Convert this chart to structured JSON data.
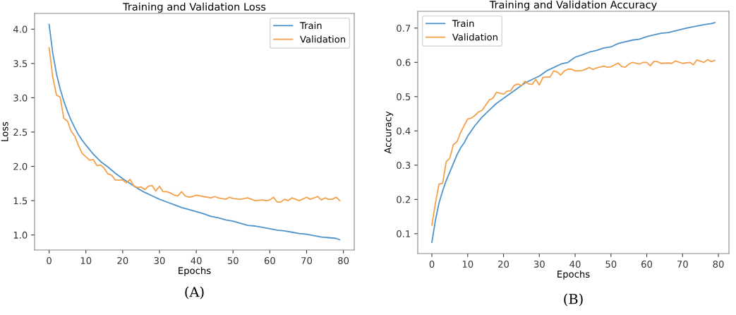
{
  "chart_data": [
    {
      "type": "line",
      "title": "Training and Validation Loss",
      "xlabel": "Epochs",
      "ylabel": "Loss",
      "xlim": [
        -3.95,
        82.95
      ],
      "ylim": [
        0.78,
        4.23
      ],
      "xticks": [
        0,
        10,
        20,
        30,
        40,
        50,
        60,
        70,
        80
      ],
      "yticks": [
        {
          "value": 1.0,
          "label": "1.0"
        },
        1.5,
        {
          "value": 2.0,
          "label": "2.0"
        },
        2.5,
        {
          "value": 3.0,
          "label": "3.0"
        },
        3.5,
        {
          "value": 4.0,
          "label": "4.0"
        }
      ],
      "grid": false,
      "legend": "top right",
      "annotations": [
        "(A)"
      ],
      "series": [
        {
          "name": "Train",
          "color": "#4f94cd",
          "x": [
            0,
            1,
            2,
            3,
            4,
            5,
            6,
            7,
            8,
            9,
            10,
            12,
            14,
            16,
            18,
            20,
            22,
            24,
            26,
            28,
            30,
            32,
            34,
            36,
            38,
            40,
            42,
            44,
            46,
            48,
            50,
            52,
            54,
            56,
            58,
            60,
            62,
            64,
            66,
            68,
            70,
            72,
            74,
            76,
            78,
            79
          ],
          "values": [
            4.07,
            3.65,
            3.35,
            3.13,
            2.95,
            2.8,
            2.67,
            2.56,
            2.46,
            2.38,
            2.31,
            2.18,
            2.07,
            1.99,
            1.9,
            1.82,
            1.75,
            1.68,
            1.62,
            1.57,
            1.52,
            1.48,
            1.44,
            1.4,
            1.37,
            1.34,
            1.31,
            1.27,
            1.25,
            1.22,
            1.2,
            1.17,
            1.14,
            1.13,
            1.11,
            1.09,
            1.07,
            1.06,
            1.04,
            1.02,
            1.01,
            0.99,
            0.97,
            0.96,
            0.95,
            0.93
          ]
        },
        {
          "name": "Validation",
          "color": "#f5a04a",
          "x": [
            0,
            1,
            2,
            3,
            4,
            5,
            6,
            7,
            8,
            9,
            10,
            11,
            12,
            13,
            14,
            15,
            16,
            17,
            18,
            19,
            20,
            21,
            22,
            23,
            24,
            25,
            26,
            27,
            28,
            29,
            30,
            31,
            32,
            33,
            34,
            35,
            36,
            37,
            38,
            39,
            40,
            42,
            44,
            45,
            46,
            48,
            49,
            50,
            52,
            54,
            56,
            58,
            59,
            60,
            61,
            62,
            63,
            64,
            65,
            66,
            67,
            68,
            70,
            71,
            73,
            74,
            75,
            76,
            77,
            78,
            79
          ],
          "values": [
            3.73,
            3.3,
            3.04,
            3.01,
            2.7,
            2.66,
            2.51,
            2.44,
            2.3,
            2.19,
            2.14,
            2.09,
            2.1,
            2.01,
            2.02,
            1.97,
            1.89,
            1.87,
            1.8,
            1.8,
            1.8,
            1.76,
            1.81,
            1.72,
            1.69,
            1.7,
            1.66,
            1.71,
            1.72,
            1.64,
            1.71,
            1.63,
            1.63,
            1.61,
            1.58,
            1.57,
            1.63,
            1.57,
            1.55,
            1.56,
            1.58,
            1.56,
            1.54,
            1.56,
            1.54,
            1.52,
            1.55,
            1.53,
            1.52,
            1.54,
            1.5,
            1.51,
            1.5,
            1.51,
            1.55,
            1.48,
            1.48,
            1.52,
            1.5,
            1.54,
            1.52,
            1.5,
            1.55,
            1.52,
            1.56,
            1.51,
            1.54,
            1.52,
            1.52,
            1.55,
            1.5
          ]
        }
      ]
    },
    {
      "type": "line",
      "title": "Training and Validation Accuracy",
      "xlabel": "Epochs",
      "ylabel": "Accuracy",
      "xlim": [
        -3.95,
        82.95
      ],
      "ylim": [
        0.042,
        0.749
      ],
      "xticks": [
        0,
        10,
        20,
        30,
        40,
        50,
        60,
        70,
        80
      ],
      "yticks": [
        0.1,
        0.2,
        0.3,
        0.4,
        0.5,
        0.6,
        0.7
      ],
      "grid": false,
      "legend": "top left",
      "annotations": [
        "(B)"
      ],
      "series": [
        {
          "name": "Train",
          "color": "#4f94cd",
          "x": [
            0,
            1,
            2,
            3,
            4,
            5,
            6,
            7,
            8,
            9,
            10,
            12,
            14,
            16,
            18,
            20,
            22,
            24,
            26,
            28,
            30,
            32,
            34,
            36,
            38,
            40,
            42,
            44,
            46,
            48,
            50,
            52,
            54,
            56,
            58,
            60,
            62,
            64,
            66,
            68,
            70,
            72,
            74,
            76,
            78,
            79
          ],
          "values": [
            0.075,
            0.14,
            0.19,
            0.225,
            0.255,
            0.28,
            0.305,
            0.33,
            0.35,
            0.365,
            0.385,
            0.415,
            0.44,
            0.46,
            0.48,
            0.495,
            0.51,
            0.525,
            0.54,
            0.55,
            0.56,
            0.575,
            0.585,
            0.595,
            0.6,
            0.615,
            0.622,
            0.63,
            0.635,
            0.642,
            0.645,
            0.655,
            0.66,
            0.665,
            0.668,
            0.675,
            0.68,
            0.685,
            0.687,
            0.692,
            0.697,
            0.702,
            0.706,
            0.71,
            0.713,
            0.716
          ]
        },
        {
          "name": "Validation",
          "color": "#f5a04a",
          "x": [
            0,
            1,
            2,
            3,
            4,
            5,
            6,
            7,
            8,
            9,
            10,
            11,
            12,
            13,
            14,
            15,
            16,
            17,
            18,
            19,
            20,
            21,
            22,
            23,
            24,
            25,
            26,
            27,
            28,
            29,
            30,
            31,
            32,
            33,
            34,
            35,
            36,
            37,
            38,
            39,
            40,
            42,
            44,
            45,
            46,
            48,
            49,
            50,
            52,
            53,
            54,
            55,
            56,
            58,
            59,
            60,
            61,
            62,
            63,
            64,
            66,
            67,
            68,
            70,
            72,
            73,
            74,
            76,
            77,
            78,
            79
          ],
          "values": [
            0.125,
            0.19,
            0.245,
            0.247,
            0.31,
            0.32,
            0.36,
            0.368,
            0.395,
            0.415,
            0.435,
            0.437,
            0.445,
            0.455,
            0.46,
            0.475,
            0.49,
            0.495,
            0.512,
            0.51,
            0.507,
            0.516,
            0.517,
            0.533,
            0.537,
            0.532,
            0.545,
            0.537,
            0.536,
            0.55,
            0.534,
            0.556,
            0.557,
            0.557,
            0.575,
            0.572,
            0.563,
            0.575,
            0.58,
            0.58,
            0.575,
            0.576,
            0.585,
            0.579,
            0.584,
            0.589,
            0.586,
            0.587,
            0.598,
            0.588,
            0.586,
            0.595,
            0.6,
            0.595,
            0.6,
            0.6,
            0.59,
            0.603,
            0.602,
            0.597,
            0.598,
            0.597,
            0.604,
            0.597,
            0.6,
            0.593,
            0.607,
            0.6,
            0.608,
            0.602,
            0.606
          ]
        }
      ]
    }
  ]
}
